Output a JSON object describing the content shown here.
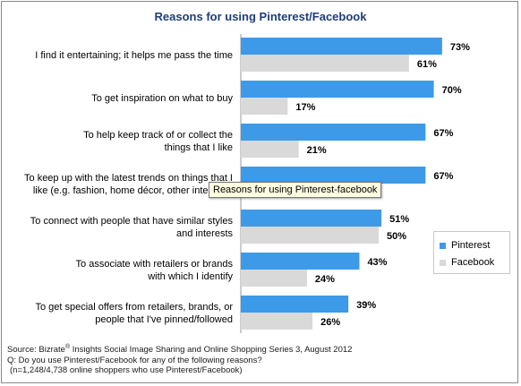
{
  "colors": {
    "pinterest": "#3d9ae8",
    "facebook": "#d9d9d9",
    "title": "#1f3d7a"
  },
  "chart_data": {
    "type": "bar",
    "orientation": "horizontal",
    "title": "Reasons for using Pinterest/Facebook",
    "categories": [
      "I find it entertaining; it helps me pass the time",
      "To get inspiration on what to buy",
      "To help keep track of or collect the things that I like",
      "To keep up with the latest trends on things that I like (e.g. fashion, home décor, other interests)",
      "To connect with people that have similar styles and interests",
      "To associate with retailers or brands with which I identify",
      "To get special offers from retailers, brands, or people that I've pinned/followed"
    ],
    "category_lines": [
      [
        "I find it entertaining; it helps me pass the time"
      ],
      [
        "To get inspiration on what to buy"
      ],
      [
        "To help keep track of or collect the",
        "things that I like"
      ],
      [
        "To keep up with the latest trends on things that I",
        "like (e.g. fashion, home décor, other interests)"
      ],
      [
        "To connect with people that have similar styles",
        "and interests"
      ],
      [
        "To associate with retailers or brands",
        "with which I identify"
      ],
      [
        "To get special offers from retailers, brands, or",
        "people that I've pinned/followed"
      ]
    ],
    "series": [
      {
        "name": "Pinterest",
        "values": [
          73,
          70,
          67,
          67,
          51,
          43,
          39
        ],
        "labels": [
          "73%",
          "70%",
          "67%",
          "67%",
          "51%",
          "43%",
          "39%"
        ]
      },
      {
        "name": "Facebook",
        "values": [
          61,
          17,
          21,
          null,
          50,
          24,
          26
        ],
        "labels": [
          "61%",
          "17%",
          "21%",
          "",
          "50%",
          "24%",
          "26%"
        ]
      }
    ],
    "xlim": [
      0,
      100
    ],
    "grid": false,
    "legend_position": "right"
  },
  "tooltip": {
    "text": "Reasons for using Pinterest-facebook"
  },
  "footer": {
    "line1_prefix": "Source: Bizrate",
    "line1_sup": "®",
    "line1_rest": " Insights  Social Image Sharing and Online Shopping Series 3, August 2012",
    "line2": "Q: Do you use Pinterest/Facebook  for any of the following reasons?",
    "line3": "(n=1,248/4,738 online shoppers  who use Pinterest/Facebook)"
  }
}
